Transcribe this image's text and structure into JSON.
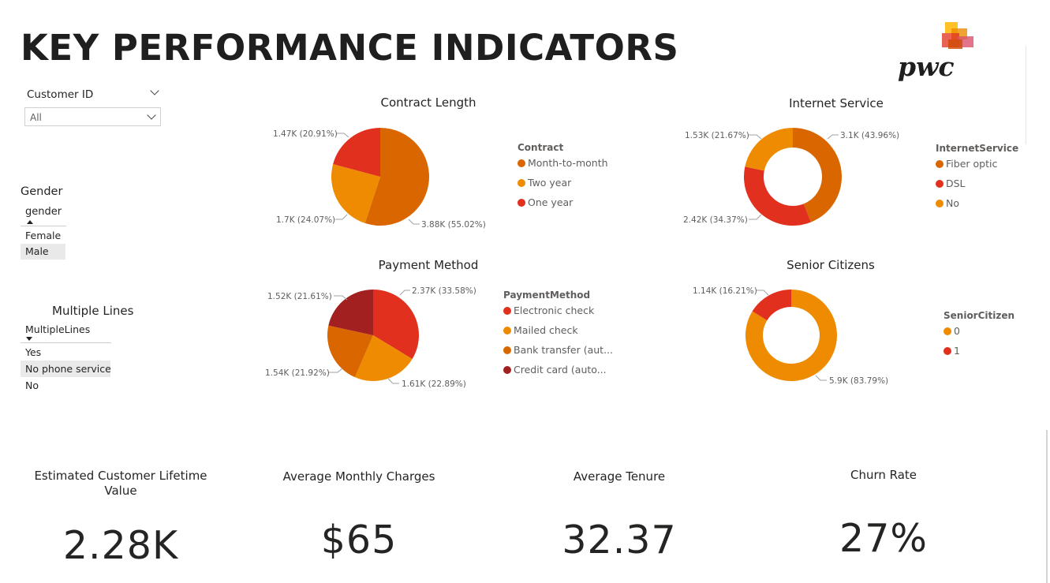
{
  "title": "KEY PERFORMANCE INDICATORS",
  "logo": {
    "text": "pwc",
    "icon": "pwc-logo"
  },
  "slicers": {
    "customer_id": {
      "label": "Customer ID",
      "selected": "All"
    },
    "gender": {
      "title": "Gender",
      "header": "gender",
      "items": [
        "Female",
        "Male"
      ],
      "selected": "Male"
    },
    "multiple_lines": {
      "title": "Multiple Lines",
      "header": "MultipleLines",
      "items": [
        "Yes",
        "No phone service",
        "No"
      ],
      "selected": "No phone service"
    }
  },
  "colors": {
    "dark_orange": "#DA6600",
    "orange": "#EE8B00",
    "red": "#E2301F",
    "maroon": "#A32020"
  },
  "charts": {
    "contract": {
      "title": "Contract Length",
      "legend_title": "Contract",
      "legend": [
        "Month-to-month",
        "Two year",
        "One year"
      ],
      "labels": [
        "3.88K (55.02%)",
        "1.7K (24.07%)",
        "1.47K (20.91%)"
      ]
    },
    "internet": {
      "title": "Internet Service",
      "legend_title": "InternetService",
      "legend": [
        "Fiber optic",
        "DSL",
        "No"
      ],
      "labels": [
        "3.1K (43.96%)",
        "2.42K (34.37%)",
        "1.53K (21.67%)"
      ]
    },
    "payment": {
      "title": "Payment Method",
      "legend_title": "PaymentMethod",
      "legend": [
        "Electronic check",
        "Mailed check",
        "Bank transfer (aut...",
        "Credit card (auto..."
      ],
      "labels": [
        "2.37K (33.58%)",
        "1.61K (22.89%)",
        "1.54K (21.92%)",
        "1.52K (21.61%)"
      ]
    },
    "senior": {
      "title": "Senior Citizens",
      "legend_title": "SeniorCitizen",
      "legend": [
        "0",
        "1"
      ],
      "labels": [
        "5.9K (83.79%)",
        "1.14K (16.21%)"
      ]
    }
  },
  "chart_data": [
    {
      "type": "pie",
      "title": "Contract Length",
      "categories": [
        "Month-to-month",
        "Two year",
        "One year"
      ],
      "values": [
        3880,
        1700,
        1470
      ],
      "percentages": [
        55.02,
        24.07,
        20.91
      ],
      "legend_position": "right"
    },
    {
      "type": "pie",
      "title": "Internet Service",
      "donut": true,
      "categories": [
        "Fiber optic",
        "DSL",
        "No"
      ],
      "values": [
        3100,
        2420,
        1530
      ],
      "percentages": [
        43.96,
        34.37,
        21.67
      ],
      "legend_position": "right"
    },
    {
      "type": "pie",
      "title": "Payment Method",
      "categories": [
        "Electronic check",
        "Mailed check",
        "Bank transfer (aut...",
        "Credit card (auto..."
      ],
      "values": [
        2370,
        1610,
        1540,
        1520
      ],
      "percentages": [
        33.58,
        22.89,
        21.92,
        21.61
      ],
      "legend_position": "right"
    },
    {
      "type": "pie",
      "title": "Senior Citizens",
      "donut": true,
      "categories": [
        "0",
        "1"
      ],
      "values": [
        5900,
        1140
      ],
      "percentages": [
        83.79,
        16.21
      ],
      "legend_position": "right"
    }
  ],
  "kpis": [
    {
      "label": "Estimated Customer Lifetime Value",
      "value": "2.28K"
    },
    {
      "label": "Average Monthly Charges",
      "value": "$65"
    },
    {
      "label": "Average Tenure",
      "value": "32.37"
    },
    {
      "label": "Churn Rate",
      "value": "27%"
    }
  ]
}
